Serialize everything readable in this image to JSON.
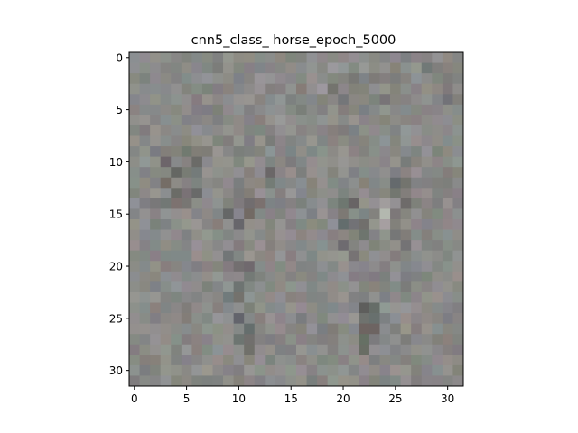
{
  "chart_data": {
    "type": "heatmap",
    "title": "cnn5_class_ horse_epoch_5000",
    "xlabel": "",
    "ylabel": "",
    "image_size": [
      32,
      32
    ],
    "xlim": [
      -0.5,
      31.5
    ],
    "ylim": [
      31.5,
      -0.5
    ],
    "x_ticks": [
      0,
      5,
      10,
      15,
      20,
      25,
      30
    ],
    "y_ticks": [
      0,
      5,
      10,
      15,
      20,
      25,
      30
    ],
    "base_color": "#8a8a88",
    "dark_features": [
      {
        "cols": [
          2,
          3
        ],
        "rows": [
          10,
          14
        ],
        "strength": 0.5
      },
      {
        "cols": [
          4,
          6
        ],
        "rows": [
          9,
          14
        ],
        "strength": 0.55
      },
      {
        "cols": [
          9,
          11
        ],
        "rows": [
          12,
          24
        ],
        "strength": 0.55
      },
      {
        "cols": [
          10,
          11
        ],
        "rows": [
          25,
          28
        ],
        "strength": 0.65
      },
      {
        "cols": [
          12,
          13
        ],
        "rows": [
          11,
          15
        ],
        "strength": 0.4
      },
      {
        "cols": [
          20,
          22
        ],
        "rows": [
          14,
          19
        ],
        "strength": 0.5
      },
      {
        "cols": [
          22,
          23
        ],
        "rows": [
          24,
          28
        ],
        "strength": 0.6
      },
      {
        "cols": [
          25,
          26
        ],
        "rows": [
          11,
          18
        ],
        "strength": 0.5
      },
      {
        "cols": [
          28,
          30
        ],
        "rows": [
          1,
          4
        ],
        "strength": 0.4
      },
      {
        "cols": [
          19,
          24
        ],
        "rows": [
          2,
          4
        ],
        "strength": 0.3
      }
    ],
    "light_features": [
      {
        "cols": [
          24,
          26
        ],
        "rows": [
          14,
          16
        ],
        "strength": 0.5
      },
      {
        "cols": [
          7,
          8
        ],
        "rows": [
          11,
          13
        ],
        "strength": 0.3
      },
      {
        "cols": [
          17,
          20
        ],
        "rows": [
          1,
          3
        ],
        "strength": 0.25
      }
    ]
  }
}
